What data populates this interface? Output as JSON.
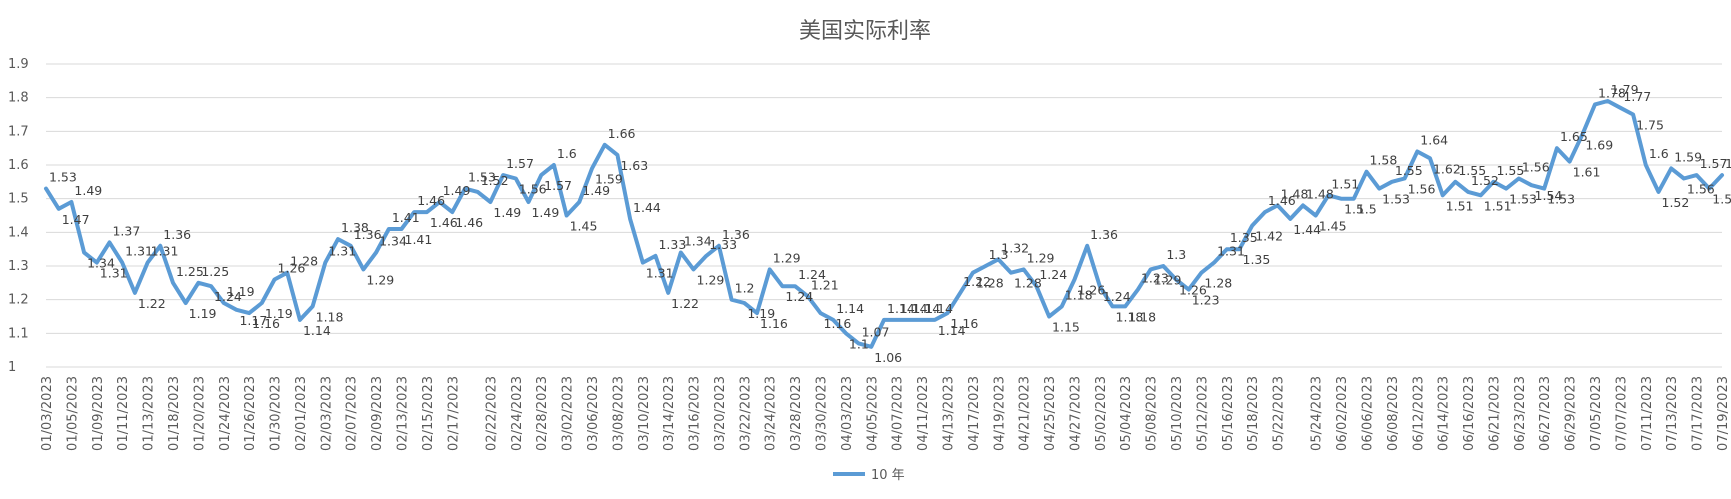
{
  "chart_data": {
    "type": "line",
    "title": "美国实际利率",
    "xlabel": "",
    "ylabel": "",
    "ylim": [
      1,
      1.9
    ],
    "yticks": [
      "1",
      "1.1",
      "1.2",
      "1.3",
      "1.4",
      "1.5",
      "1.6",
      "1.7",
      "1.8",
      "1.9"
    ],
    "grid": true,
    "legend_position": "bottom",
    "x_tick_labels": [
      "01/03/2023",
      "01/05/2023",
      "01/09/2023",
      "01/11/2023",
      "01/13/2023",
      "01/18/2023",
      "01/20/2023",
      "01/24/2023",
      "01/26/2023",
      "01/30/2023",
      "02/01/2023",
      "02/03/2023",
      "02/07/2023",
      "02/09/2023",
      "02/13/2023",
      "02/15/2023",
      "02/17/2023",
      "02/22/2023",
      "02/24/2023",
      "02/28/2023",
      "03/02/2023",
      "03/06/2023",
      "03/08/2023",
      "03/10/2023",
      "03/14/2023",
      "03/16/2023",
      "03/20/2023",
      "03/22/2023",
      "03/24/2023",
      "03/28/2023",
      "03/30/2023",
      "04/03/2023",
      "04/05/2023",
      "04/07/2023",
      "04/11/2023",
      "04/13/2023",
      "04/17/2023",
      "04/19/2023",
      "04/21/2023",
      "04/25/2023",
      "04/27/2023",
      "05/02/2023",
      "05/04/2023",
      "05/08/2023",
      "05/10/2023",
      "05/12/2023",
      "05/16/2023",
      "05/18/2023",
      "05/22/2023",
      "05/24/2023",
      "06/02/2023",
      "06/06/2023",
      "06/08/2023",
      "06/12/2023",
      "06/14/2023",
      "06/16/2023",
      "06/21/2023",
      "06/23/2023",
      "06/27/2023",
      "06/29/2023",
      "07/05/2023",
      "07/07/2023",
      "07/11/2023",
      "07/13/2023",
      "07/17/2023",
      "07/19/2023"
    ],
    "series": [
      {
        "name": "10 年",
        "color": "#5b9bd5",
        "values": [
          1.53,
          1.47,
          1.49,
          1.34,
          1.31,
          1.37,
          1.31,
          1.22,
          1.31,
          1.36,
          1.25,
          1.19,
          1.25,
          1.24,
          1.19,
          1.17,
          1.16,
          1.19,
          1.26,
          1.28,
          1.14,
          1.18,
          1.31,
          1.38,
          1.36,
          1.29,
          1.34,
          1.41,
          1.41,
          1.46,
          1.46,
          1.49,
          1.46,
          1.53,
          1.52,
          1.49,
          1.57,
          1.56,
          1.49,
          1.57,
          1.6,
          1.45,
          1.49,
          1.59,
          1.66,
          1.63,
          1.44,
          1.31,
          1.33,
          1.22,
          1.34,
          1.29,
          1.33,
          1.36,
          1.2,
          1.19,
          1.16,
          1.29,
          1.24,
          1.24,
          1.21,
          1.16,
          1.14,
          1.1,
          1.07,
          1.06,
          1.14,
          1.14,
          1.14,
          1.14,
          1.14,
          1.16,
          1.22,
          1.28,
          1.3,
          1.32,
          1.28,
          1.29,
          1.24,
          1.15,
          1.18,
          1.26,
          1.36,
          1.24,
          1.18,
          1.18,
          1.23,
          1.29,
          1.3,
          1.26,
          1.23,
          1.28,
          1.31,
          1.35,
          1.35,
          1.42,
          1.46,
          1.48,
          1.44,
          1.48,
          1.45,
          1.51,
          1.5,
          1.5,
          1.58,
          1.53,
          1.55,
          1.56,
          1.64,
          1.62,
          1.51,
          1.55,
          1.52,
          1.51,
          1.55,
          1.53,
          1.56,
          1.54,
          1.53,
          1.65,
          1.61,
          1.69,
          1.78,
          1.79,
          1.77,
          1.75,
          1.6,
          1.52,
          1.59,
          1.56,
          1.57,
          1.53,
          1.57
        ]
      }
    ]
  }
}
